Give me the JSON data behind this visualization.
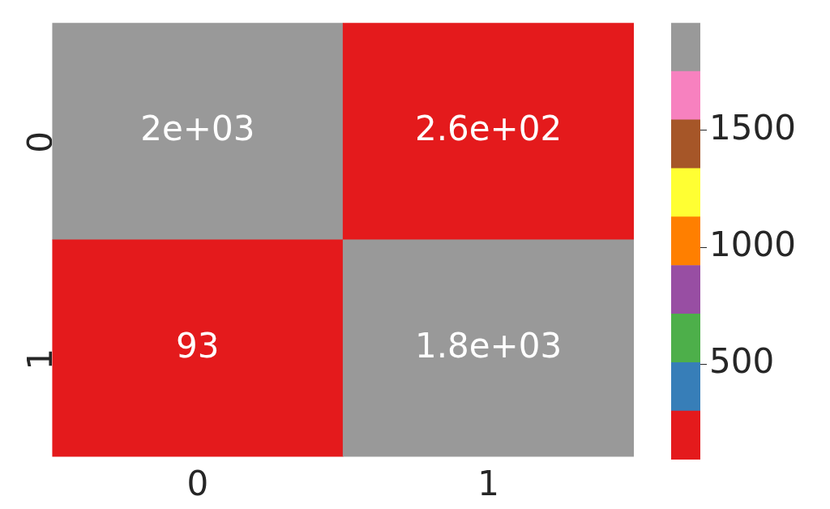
{
  "chart_data": {
    "type": "heatmap",
    "categories": [
      "0",
      "1"
    ],
    "y_categories": [
      "0",
      "1"
    ],
    "cells": [
      [
        1959,
        260
      ],
      [
        93,
        1800
      ]
    ],
    "cell_labels": [
      [
        "2e+03",
        "2.6e+02"
      ],
      [
        "93",
        "1.8e+03"
      ]
    ],
    "clim": [
      93,
      1959
    ],
    "cticks": [
      500,
      1000,
      1500
    ]
  }
}
